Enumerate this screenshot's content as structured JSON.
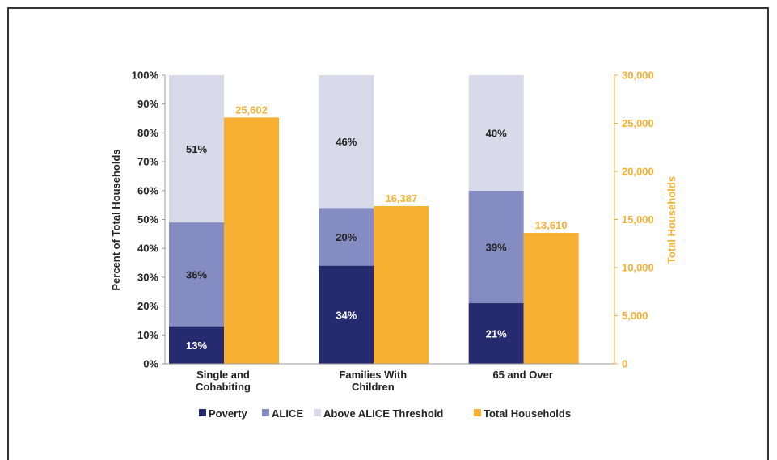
{
  "chart_data": {
    "type": "bar",
    "categories": [
      [
        "Single and",
        "Cohabiting"
      ],
      [
        "Families With",
        "Children"
      ],
      [
        "65 and Over"
      ]
    ],
    "series": [
      {
        "name": "Poverty",
        "values": [
          13,
          34,
          21
        ],
        "labels": [
          "13%",
          "34%",
          "21%"
        ],
        "color": "#262A6E",
        "label_color": "#FFFFFF",
        "axis": "left",
        "stack": "households"
      },
      {
        "name": "ALICE",
        "values": [
          36,
          20,
          39
        ],
        "labels": [
          "36%",
          "20%",
          "39%"
        ],
        "color": "#858CC2",
        "label_color": "#222222",
        "axis": "left",
        "stack": "households"
      },
      {
        "name": "Above ALICE Threshold",
        "values": [
          51,
          46,
          40
        ],
        "labels": [
          "51%",
          "46%",
          "40%"
        ],
        "color": "#D9DAE9",
        "label_color": "#222222",
        "axis": "left",
        "stack": "households"
      },
      {
        "name": "Total Households",
        "values": [
          25602,
          16387,
          13610
        ],
        "labels": [
          "25,602",
          "16,387",
          "13,610"
        ],
        "color": "#F7B032",
        "axis": "right"
      }
    ],
    "ylabel": "Percent of Total Households",
    "y2label": "Total Households",
    "ylim": [
      0,
      100
    ],
    "y2lim": [
      0,
      30000
    ],
    "yticks": [
      "0%",
      "10%",
      "20%",
      "30%",
      "40%",
      "50%",
      "60%",
      "70%",
      "80%",
      "90%",
      "100%"
    ],
    "y2ticks": [
      "0",
      "5,000",
      "10,000",
      "15,000",
      "20,000",
      "25,000",
      "30,000"
    ],
    "legend": [
      "Poverty",
      "ALICE",
      "Above ALICE Threshold",
      "Total Households"
    ],
    "legend_position": "bottom",
    "grid": false
  }
}
